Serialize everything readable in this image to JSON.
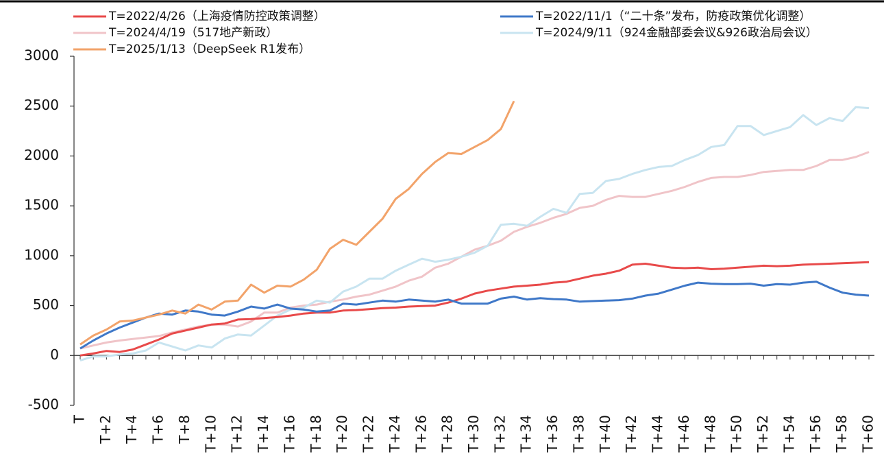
{
  "chart_data": {
    "type": "line",
    "categories": [
      "T",
      null,
      "T+2",
      null,
      "T+4",
      null,
      "T+6",
      null,
      "T+8",
      null,
      "T+10",
      null,
      "T+12",
      null,
      "T+14",
      null,
      "T+16",
      null,
      "T+18",
      null,
      "T+20",
      null,
      "T+22",
      null,
      "T+24",
      null,
      "T+26",
      null,
      "T+28",
      null,
      "T+30",
      null,
      "T+32",
      null,
      "T+34",
      null,
      "T+36",
      null,
      "T+38",
      null,
      "T+40",
      null,
      "T+42",
      null,
      "T+44",
      null,
      "T+46",
      null,
      "T+48",
      null,
      "T+50",
      null,
      "T+52",
      null,
      "T+54",
      null,
      "T+56",
      null,
      "T+58",
      null,
      "T+60"
    ],
    "ylim": [
      -500,
      3000
    ],
    "yticks": [
      -500,
      0,
      500,
      1000,
      1500,
      2000,
      2500,
      3000
    ],
    "grid": false,
    "series": [
      {
        "name": "T=2022/4/26（上海疫情防控政策调整）",
        "color": "#e84a4a",
        "values": [
          0,
          20,
          45,
          35,
          60,
          110,
          160,
          220,
          250,
          280,
          310,
          320,
          360,
          365,
          375,
          385,
          400,
          420,
          430,
          430,
          450,
          455,
          465,
          475,
          480,
          490,
          495,
          500,
          530,
          570,
          620,
          650,
          670,
          690,
          700,
          710,
          730,
          740,
          770,
          800,
          820,
          850,
          910,
          920,
          900,
          880,
          875,
          880,
          865,
          870,
          880,
          890,
          900,
          895,
          900,
          910,
          915,
          920,
          925,
          930,
          935
        ]
      },
      {
        "name": "T=2022/11/1（“二十条”发布，防疫政策优化调整）",
        "color": "#3f78c8",
        "values": [
          70,
          150,
          220,
          280,
          330,
          380,
          420,
          410,
          450,
          440,
          410,
          400,
          440,
          490,
          470,
          510,
          470,
          460,
          440,
          450,
          520,
          510,
          530,
          550,
          540,
          560,
          550,
          540,
          560,
          520,
          520,
          520,
          570,
          590,
          560,
          575,
          565,
          560,
          540,
          545,
          550,
          555,
          570,
          600,
          620,
          660,
          700,
          730,
          720,
          715,
          715,
          720,
          700,
          715,
          710,
          730,
          740,
          680,
          630,
          610,
          600
        ]
      },
      {
        "name": "T=2024/4/19（517地产新政）",
        "color": "#f0c4c8",
        "values": [
          70,
          100,
          130,
          150,
          165,
          180,
          195,
          230,
          260,
          290,
          310,
          310,
          290,
          340,
          430,
          430,
          480,
          500,
          510,
          540,
          560,
          590,
          610,
          650,
          690,
          750,
          790,
          880,
          920,
          990,
          1060,
          1100,
          1150,
          1240,
          1290,
          1330,
          1380,
          1420,
          1480,
          1500,
          1560,
          1600,
          1590,
          1590,
          1620,
          1650,
          1690,
          1740,
          1780,
          1790,
          1790,
          1810,
          1840,
          1850,
          1860,
          1860,
          1900,
          1960,
          1960,
          1990,
          2040
        ]
      },
      {
        "name": "T=2024/9/11（924金融部委会议&926政治局会议）",
        "color": "#c8e4f0",
        "values": [
          -50,
          -10,
          -10,
          10,
          20,
          50,
          130,
          90,
          50,
          100,
          80,
          170,
          210,
          200,
          300,
          400,
          460,
          480,
          550,
          530,
          640,
          690,
          770,
          770,
          850,
          910,
          970,
          940,
          960,
          990,
          1030,
          1100,
          1310,
          1320,
          1300,
          1390,
          1470,
          1430,
          1620,
          1630,
          1750,
          1770,
          1820,
          1860,
          1890,
          1900,
          1960,
          2010,
          2090,
          2110,
          2300,
          2300,
          2210,
          2250,
          2290,
          2410,
          2310,
          2380,
          2350,
          2490,
          2480
        ]
      },
      {
        "name": "T=2025/1/13（DeepSeek R1发布）",
        "color": "#f2a36a",
        "values": [
          110,
          200,
          260,
          340,
          350,
          380,
          410,
          450,
          420,
          510,
          460,
          540,
          550,
          710,
          630,
          700,
          690,
          760,
          860,
          1070,
          1160,
          1110,
          1240,
          1370,
          1570,
          1670,
          1820,
          1940,
          2030,
          2020,
          2090,
          2160,
          2270,
          2550,
          null,
          null,
          null,
          null,
          null,
          null,
          null,
          null,
          null,
          null,
          null,
          null,
          null,
          null,
          null,
          null,
          null,
          null,
          null,
          null,
          null,
          null,
          null,
          null,
          null,
          null,
          null
        ]
      }
    ]
  }
}
